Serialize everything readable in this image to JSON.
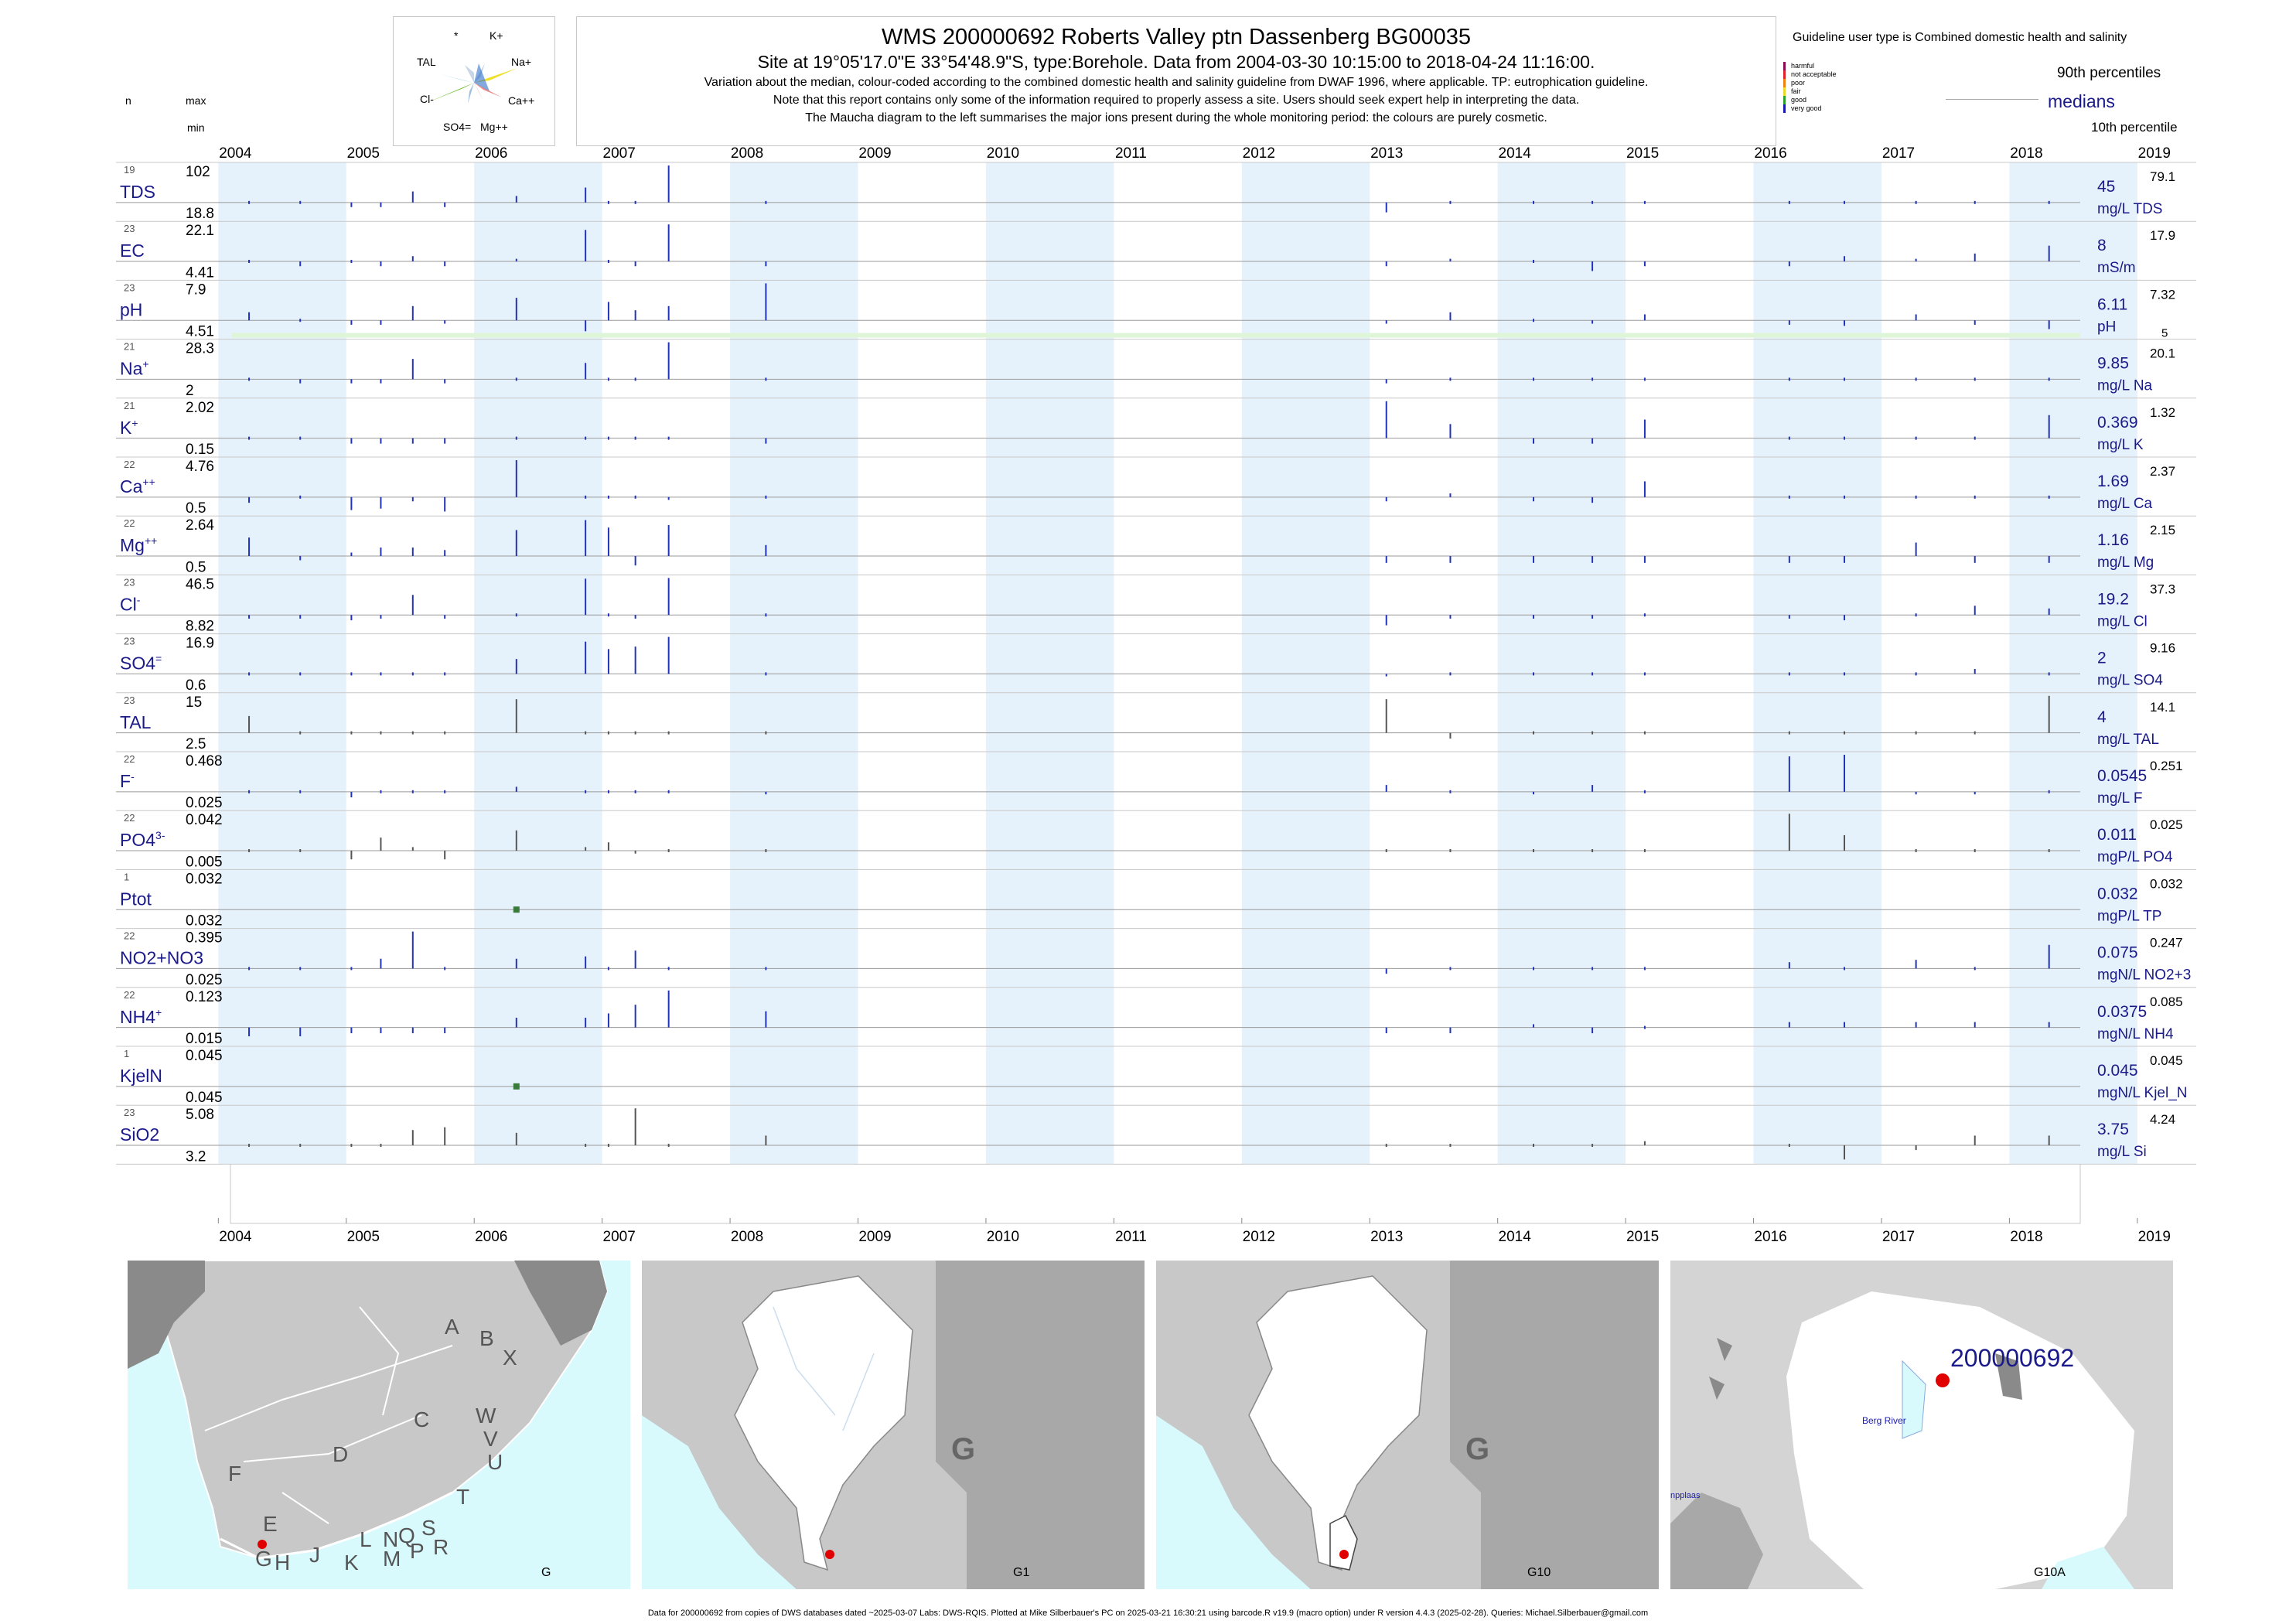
{
  "header": {
    "title": "WMS 200000692  Roberts Valley ptn Dassenberg BG00035",
    "subtitle": "Site at 19°05'17.0\"E 33°54'48.9\"S, type:Borehole.  Data from 2004-03-30 10:15:00 to 2018-04-24 11:16:00.",
    "note1": "Variation about the median,  colour-coded according to the combined domestic health and salinity guideline from DWAF 1996, where applicable. TP: eutrophication guideline.",
    "note2": "Note that this report contains only some of the information required to properly assess a site. Users should seek expert help in interpreting the data.",
    "note3": "The Maucha diagram to the left summarises the major ions present during the whole monitoring period: the colours are purely cosmetic."
  },
  "maucha": {
    "labels": [
      "*",
      "K+",
      "TAL",
      "Na+",
      "Cl-",
      "Ca++",
      "SO4=",
      "Mg++"
    ]
  },
  "legend": {
    "guideline": "Guideline user type is Combined domestic health and salinity",
    "classes": [
      {
        "label": "harmful",
        "color": "#8b0a50"
      },
      {
        "label": "not acceptable",
        "color": "#e0202a"
      },
      {
        "label": "poor",
        "color": "#f07f10"
      },
      {
        "label": "fair",
        "color": "#e8d82a"
      },
      {
        "label": "good",
        "color": "#2aa02a"
      },
      {
        "label": "very good",
        "color": "#1a1ab0"
      }
    ],
    "p90": "90th percentiles",
    "medians": "medians",
    "p10": "10th percentile"
  },
  "column_heads": {
    "n": "n",
    "max": "max",
    "min": "min"
  },
  "chart_data": {
    "type": "bar",
    "title": "WMS 200000692  Roberts Valley ptn Dassenberg BG00035",
    "x_axis": {
      "type": "time",
      "range": [
        2003.2,
        2019.4
      ],
      "ticks": [
        "2004",
        "2005",
        "2006",
        "2007",
        "2008",
        "2009",
        "2010",
        "2011",
        "2012",
        "2013",
        "2014",
        "2015",
        "2016",
        "2017",
        "2018",
        "2019"
      ]
    },
    "sample_dates": [
      2004.24,
      2004.64,
      2005.04,
      2005.27,
      2005.52,
      2005.77,
      2006.33,
      2006.87,
      2007.05,
      2007.26,
      2007.52,
      2008.28,
      2013.13,
      2013.63,
      2014.28,
      2014.74,
      2015.15,
      2016.28,
      2016.71,
      2017.27,
      2017.73,
      2018.31
    ],
    "panels": [
      {
        "param": "TDS",
        "sup": "",
        "n": "19",
        "max": "102",
        "min": "18.8",
        "median": "45",
        "unit": "mg/L TDS",
        "p90": "79.1",
        "p10": "",
        "values": [
          45,
          45,
          38,
          38,
          62,
          38,
          55,
          68,
          48,
          42,
          102,
          46,
          30,
          45,
          45,
          45,
          45,
          45,
          45,
          45,
          45,
          48
        ]
      },
      {
        "param": "EC",
        "sup": "",
        "n": "23",
        "max": "22.1",
        "min": "4.41",
        "median": "8",
        "unit": "mS/m",
        "p90": "17.9",
        "p10": "",
        "values": [
          8,
          7,
          8,
          7,
          10,
          7,
          9,
          20,
          8,
          7,
          22.1,
          7,
          7,
          9,
          8,
          6,
          7,
          7,
          10,
          9,
          11,
          14
        ]
      },
      {
        "param": "pH",
        "sup": "",
        "n": "23",
        "max": "7.9",
        "min": "4.51",
        "median": "6.11",
        "unit": "pH",
        "p90": "7.32",
        "p10": "5",
        "values": [
          6.5,
          5.9,
          5.7,
          5.7,
          6.8,
          5.8,
          7.2,
          5.1,
          7.0,
          6.6,
          6.8,
          7.9,
          5.8,
          6.5,
          5.9,
          5.8,
          6.4,
          5.7,
          5.6,
          6.4,
          5.7,
          5.3
        ]
      },
      {
        "param": "Na",
        "sup": "+",
        "n": "21",
        "max": "28.3",
        "min": "2",
        "median": "9.85",
        "unit": "mg/L Na",
        "p90": "20.1",
        "p10": "",
        "values": [
          9.8,
          8,
          8,
          8,
          20,
          8,
          9,
          18,
          10,
          9,
          28.3,
          9,
          8,
          11,
          9,
          9,
          9,
          9,
          9,
          10,
          11,
          11
        ]
      },
      {
        "param": "K",
        "sup": "+",
        "n": "21",
        "max": "2.02",
        "min": "0.15",
        "median": "0.369",
        "unit": "mg/L K",
        "p90": "1.32",
        "p10": "",
        "values": [
          0.45,
          0.37,
          0.3,
          0.3,
          0.3,
          0.3,
          0.37,
          0.37,
          0.37,
          0.37,
          0.37,
          0.3,
          2.02,
          1.0,
          0.3,
          0.3,
          1.2,
          0.45,
          0.37,
          0.37,
          0.37,
          1.4
        ]
      },
      {
        "param": "Ca",
        "sup": "++",
        "n": "22",
        "max": "4.76",
        "min": "0.5",
        "median": "1.69",
        "unit": "mg/L Ca",
        "p90": "2.37",
        "p10": "",
        "values": [
          1.3,
          1.6,
          0.8,
          0.9,
          1.4,
          0.7,
          4.76,
          1.6,
          1.6,
          1.7,
          1.5,
          1.6,
          1.4,
          2.0,
          1.4,
          1.3,
          3.0,
          1.6,
          1.6,
          1.7,
          1.6,
          1.6
        ]
      },
      {
        "param": "Mg",
        "sup": "++",
        "n": "22",
        "max": "2.64",
        "min": "0.5",
        "median": "1.16",
        "unit": "mg/L Mg",
        "p90": "2.15",
        "p10": "",
        "values": [
          1.9,
          1.0,
          1.3,
          1.5,
          1.5,
          1.4,
          2.2,
          2.6,
          2.3,
          0.8,
          2.4,
          1.6,
          0.9,
          0.9,
          0.9,
          0.9,
          0.9,
          0.9,
          0.9,
          1.7,
          0.9,
          0.9
        ]
      },
      {
        "param": "Cl",
        "sup": "-",
        "n": "23",
        "max": "46.5",
        "min": "8.82",
        "median": "19.2",
        "unit": "mg/L Cl",
        "p90": "37.3",
        "p10": "",
        "values": [
          17,
          17,
          16,
          17,
          34,
          17,
          18,
          46,
          20,
          17,
          46.5,
          18,
          13,
          17,
          17,
          17,
          18,
          17,
          16,
          19,
          26,
          24
        ]
      },
      {
        "param": "SO4",
        "sup": "=",
        "n": "23",
        "max": "16.9",
        "min": "0.6",
        "median": "2",
        "unit": "mg/L SO4",
        "p90": "9.16",
        "p10": "",
        "values": [
          2.2,
          2,
          2,
          2,
          2.3,
          2,
          8,
          15,
          12,
          13,
          16.9,
          2.3,
          1.8,
          2.3,
          2.2,
          1.9,
          2,
          2.2,
          2.2,
          2.3,
          4,
          2.2
        ]
      },
      {
        "param": "TAL",
        "sup": "",
        "n": "23",
        "max": "15",
        "min": "2.5",
        "median": "4",
        "unit": "mg/L TAL",
        "p90": "14.1",
        "p10": "",
        "values": [
          9,
          4,
          4,
          4,
          4,
          4,
          14,
          4,
          4,
          4,
          4,
          4,
          14,
          3.5,
          4,
          4,
          4,
          4,
          4,
          4,
          4,
          15
        ]
      },
      {
        "param": "F",
        "sup": "-",
        "n": "22",
        "max": "0.468",
        "min": "0.025",
        "median": "0.0545",
        "unit": "mg/L F",
        "p90": "0.251",
        "p10": "",
        "values": [
          0.075,
          0.07,
          0.045,
          0.08,
          0.06,
          0.06,
          0.11,
          0.06,
          0.06,
          0.06,
          0.06,
          0.05,
          0.13,
          0.06,
          0.05,
          0.13,
          0.06,
          0.45,
          0.468,
          0.05,
          0.05,
          0.06
        ]
      },
      {
        "param": "PO4",
        "sup": "3-",
        "n": "22",
        "max": "0.042",
        "min": "0.005",
        "median": "0.011",
        "unit": "mgP/L PO4",
        "p90": "0.025",
        "p10": "",
        "values": [
          0.011,
          0.011,
          0.008,
          0.022,
          0.014,
          0.008,
          0.028,
          0.014,
          0.018,
          0.01,
          0.011,
          0.011,
          0.011,
          0.011,
          0.011,
          0.011,
          0.011,
          0.042,
          0.024,
          0.011,
          0.011,
          0.011
        ]
      },
      {
        "param": "Ptot",
        "sup": "",
        "n": "1",
        "max": "0.032",
        "min": "0.032",
        "median": "0.032",
        "unit": "mgP/L TP",
        "p90": "0.032",
        "p10": "",
        "values": []
      },
      {
        "param": "NO2+NO3",
        "sup": "",
        "n": "22",
        "max": "0.395",
        "min": "0.025",
        "median": "0.075",
        "unit": "mgN/L NO2+3",
        "p90": "0.247",
        "p10": "",
        "values": [
          0.075,
          0.075,
          0.09,
          0.16,
          0.395,
          0.075,
          0.16,
          0.18,
          0.075,
          0.23,
          0.09,
          0.075,
          0.06,
          0.075,
          0.075,
          0.075,
          0.075,
          0.13,
          0.075,
          0.15,
          0.075,
          0.28
        ]
      },
      {
        "param": "NH4",
        "sup": "+",
        "n": "22",
        "max": "0.123",
        "min": "0.015",
        "median": "0.0375",
        "unit": "mgN/L NH4",
        "p90": "0.085",
        "p10": "",
        "values": [
          0.026,
          0.026,
          0.03,
          0.03,
          0.03,
          0.03,
          0.06,
          0.06,
          0.07,
          0.09,
          0.123,
          0.075,
          0.03,
          0.03,
          0.045,
          0.03,
          0.04,
          0.05,
          0.05,
          0.05,
          0.05,
          0.05
        ]
      },
      {
        "param": "KjelN",
        "sup": "",
        "n": "1",
        "max": "0.045",
        "min": "0.045",
        "median": "0.045",
        "unit": "mgN/L Kjel_N",
        "p90": "0.045",
        "p10": "",
        "values": []
      },
      {
        "param": "SiO2",
        "sup": "",
        "n": "23",
        "max": "5.08",
        "min": "3.2",
        "median": "3.75",
        "unit": "mg/L Si",
        "p90": "4.24",
        "p10": "",
        "values": [
          3.8,
          3.75,
          3.75,
          3.75,
          4.3,
          4.4,
          4.2,
          3.75,
          3.75,
          5.08,
          3.75,
          4.1,
          3.75,
          3.75,
          3.75,
          3.75,
          3.9,
          3.75,
          3.3,
          3.6,
          4.1,
          4.1
        ]
      }
    ],
    "single_points": [
      {
        "panel": "Ptot",
        "date": 2006.33,
        "value": 0.032
      },
      {
        "panel": "KjelN",
        "date": 2006.33,
        "value": 0.045
      }
    ]
  },
  "maps": [
    {
      "name": "G",
      "labels": [
        "A",
        "B",
        "X",
        "W",
        "C",
        "D",
        "V",
        "U",
        "T",
        "F",
        "E",
        "G",
        "H",
        "J",
        "K",
        "L",
        "N",
        "Q",
        "S",
        "R",
        "M",
        "P"
      ]
    },
    {
      "name": "G1",
      "labels": [
        "G"
      ]
    },
    {
      "name": "G10",
      "labels": [
        "G"
      ]
    },
    {
      "name": "G10A",
      "labels": [
        "200000692",
        "Berg River",
        "npplaas"
      ]
    }
  ],
  "footer": "Data for 200000692 from copies of DWS databases dated ~2025-03-07 Labs: DWS-RQIS. Plotted at Mike Silberbauer's PC on 2025-03-21 16:30:21 using barcode.R v19.9 (macro option) under R version 4.4.3 (2025-02-28). Queries: Michael.Silberbauer@gmail.com"
}
